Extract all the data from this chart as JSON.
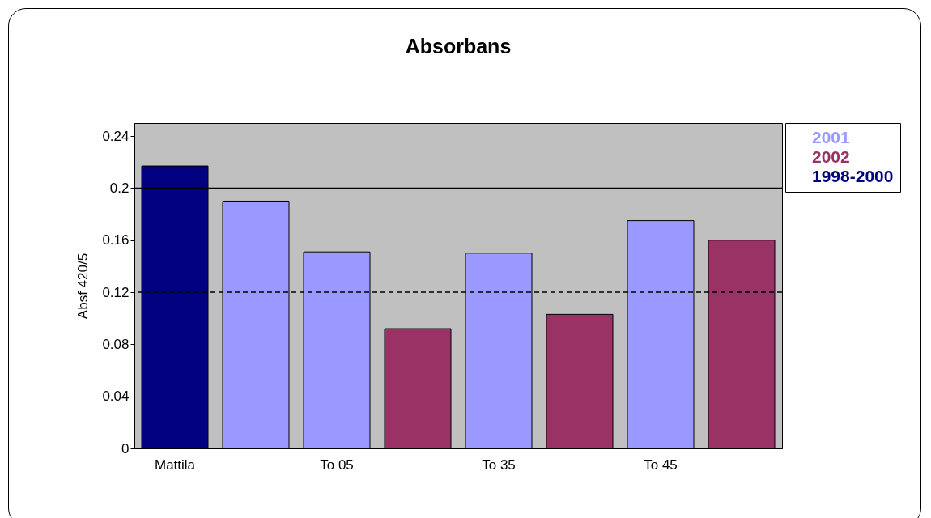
{
  "chart_data": {
    "type": "bar",
    "title": "Absorbans",
    "ylabel": "Absf 420/5",
    "categories": [
      "Mattila",
      null,
      "To 05",
      null,
      "To 35",
      null,
      "To 45",
      null
    ],
    "series": [
      {
        "name": "2001",
        "color": "#9999ff",
        "values": [
          null,
          0.19,
          0.151,
          null,
          0.15,
          null,
          0.175,
          null
        ]
      },
      {
        "name": "2002",
        "color": "#993366",
        "values": [
          null,
          null,
          null,
          0.092,
          null,
          0.103,
          null,
          0.16
        ]
      },
      {
        "name": "1998-2000",
        "color": "#000080",
        "values": [
          0.217,
          null,
          null,
          null,
          null,
          null,
          null,
          null
        ]
      }
    ],
    "ylim": [
      0,
      0.25
    ],
    "yticks": [
      0,
      0.04,
      0.08,
      0.12,
      0.16,
      0.2,
      0.24
    ],
    "grid": false,
    "legend": "right",
    "ref_lines": [
      {
        "axis": "y",
        "value": 0.2,
        "line_style": "solid"
      },
      {
        "axis": "y",
        "value": 0.12,
        "line_style": "dashed"
      }
    ]
  }
}
